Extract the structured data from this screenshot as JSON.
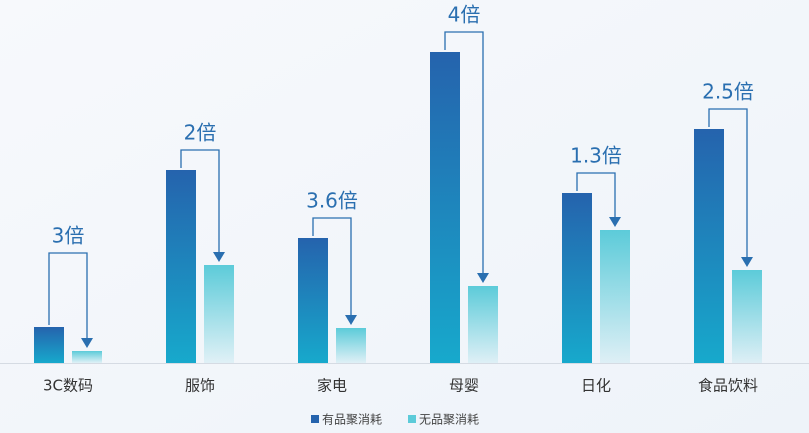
{
  "chart_data": {
    "type": "bar",
    "categories": [
      "3C数码",
      "服饰",
      "家电",
      "母婴",
      "日化",
      "食品饮料"
    ],
    "series": [
      {
        "name": "有品聚消耗",
        "color": "#2563ad",
        "values": [
          36,
          193,
          125,
          311,
          170,
          234
        ]
      },
      {
        "name": "无品聚消耗",
        "color": "#5ccbd9",
        "values": [
          12,
          98,
          35,
          77,
          133,
          93
        ]
      }
    ],
    "annotations": [
      "3倍",
      "2倍",
      "3.6倍",
      "4倍",
      "1.3倍",
      "2.5倍"
    ],
    "annotation_color": "#2a6fb0",
    "legend": "bottom"
  }
}
